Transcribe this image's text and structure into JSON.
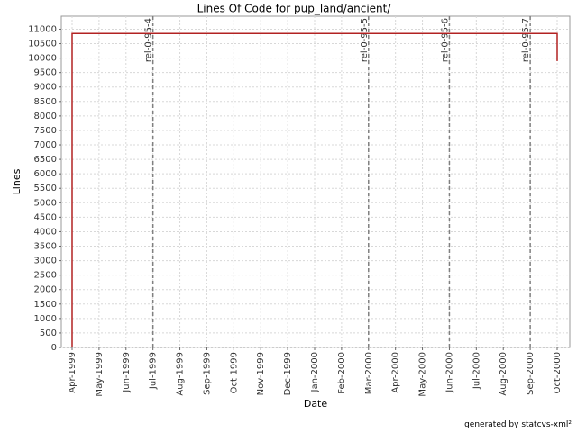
{
  "chart_data": {
    "type": "line",
    "title": "Lines Of Code for pup_land/ancient/",
    "xlabel": "Date",
    "ylabel": "Lines",
    "footer": "generated by statcvs-xml²",
    "x": [
      "1999-04",
      "1999-04",
      "2000-10",
      "2000-10"
    ],
    "values": [
      0,
      10850,
      10850,
      9900
    ],
    "color": "#b22222",
    "xlim": [
      "1999-04",
      "2000-10"
    ],
    "xticks": [
      {
        "value": "1999-04",
        "label": "Apr-1999"
      },
      {
        "value": "1999-05",
        "label": "May-1999"
      },
      {
        "value": "1999-06",
        "label": "Jun-1999"
      },
      {
        "value": "1999-07",
        "label": "Jul-1999"
      },
      {
        "value": "1999-08",
        "label": "Aug-1999"
      },
      {
        "value": "1999-09",
        "label": "Sep-1999"
      },
      {
        "value": "1999-10",
        "label": "Oct-1999"
      },
      {
        "value": "1999-11",
        "label": "Nov-1999"
      },
      {
        "value": "1999-12",
        "label": "Dec-1999"
      },
      {
        "value": "2000-01",
        "label": "Jan-2000"
      },
      {
        "value": "2000-02",
        "label": "Feb-2000"
      },
      {
        "value": "2000-03",
        "label": "Mar-2000"
      },
      {
        "value": "2000-04",
        "label": "Apr-2000"
      },
      {
        "value": "2000-05",
        "label": "May-2000"
      },
      {
        "value": "2000-06",
        "label": "Jun-2000"
      },
      {
        "value": "2000-07",
        "label": "Jul-2000"
      },
      {
        "value": "2000-08",
        "label": "Aug-2000"
      },
      {
        "value": "2000-09",
        "label": "Sep-2000"
      },
      {
        "value": "2000-10",
        "label": "Oct-2000"
      }
    ],
    "ylim": [
      0,
      11450
    ],
    "yticks": [
      0,
      500,
      1000,
      1500,
      2000,
      2500,
      3000,
      3500,
      4000,
      4500,
      5000,
      5500,
      6000,
      6500,
      7000,
      7500,
      8000,
      8500,
      9000,
      9500,
      10000,
      10500,
      11000
    ],
    "grid": true,
    "markers": [
      {
        "x": "1999-07",
        "label": "rel-0-95-4"
      },
      {
        "x": "2000-03",
        "label": "rel-0-95-5"
      },
      {
        "x": "2000-06",
        "label": "rel-0-95-6"
      },
      {
        "x": "2000-09",
        "label": "rel-0-95-7"
      }
    ],
    "marker_color": "#808080"
  }
}
